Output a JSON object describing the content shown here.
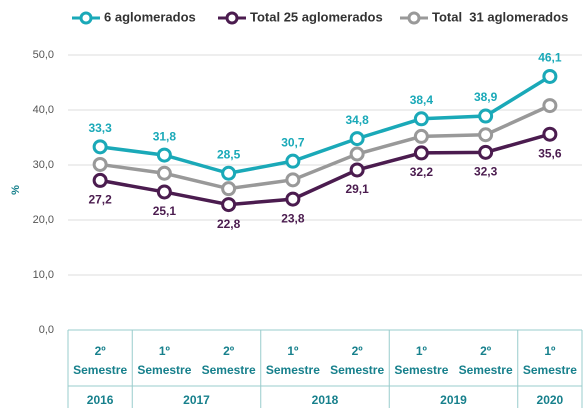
{
  "chart_data": {
    "type": "line",
    "ylabel": "%",
    "categories": [
      [
        "2º",
        "Semestre"
      ],
      [
        "1º",
        "Semestre"
      ],
      [
        "2º",
        "Semestre"
      ],
      [
        "1º",
        "Semestre"
      ],
      [
        "2º",
        "Semestre"
      ],
      [
        "1º",
        "Semestre"
      ],
      [
        "2º",
        "Semestre"
      ],
      [
        "1º",
        "Semestre"
      ]
    ],
    "years": [
      "2016",
      "2017",
      "2017",
      "2018",
      "2018",
      "2019",
      "2019",
      "2020"
    ],
    "ylim": [
      0,
      50
    ],
    "yticks": [
      {
        "value": 0,
        "label": "0,0"
      },
      {
        "value": 10,
        "label": "10,0"
      },
      {
        "value": 20,
        "label": "20,0"
      },
      {
        "value": 30,
        "label": "30,0"
      },
      {
        "value": 40,
        "label": "40,0"
      },
      {
        "value": 50,
        "label": "50,0"
      }
    ],
    "series": [
      {
        "name": "6 aglomerados",
        "color": "#1aa9b8",
        "label_position": "above",
        "values": [
          33.3,
          31.8,
          28.5,
          30.7,
          34.8,
          38.4,
          38.9,
          46.1
        ],
        "value_labels": [
          "33,3",
          "31,8",
          "28,5",
          "30,7",
          "34,8",
          "38,4",
          "38,9",
          "46,1"
        ]
      },
      {
        "name": "Total 25 aglomerados",
        "color": "#4b1c4f",
        "label_position": "below",
        "values": [
          27.2,
          25.1,
          22.8,
          23.8,
          29.1,
          32.2,
          32.3,
          35.6
        ],
        "value_labels": [
          "27,2",
          "25,1",
          "22,8",
          "23,8",
          "29,1",
          "32,2",
          "32,3",
          "35,6"
        ]
      },
      {
        "name": "Total  31 aglomerados",
        "color": "#999999",
        "values": [
          30.1,
          28.5,
          25.7,
          27.3,
          32.0,
          35.2,
          35.5,
          40.8
        ]
      }
    ]
  }
}
